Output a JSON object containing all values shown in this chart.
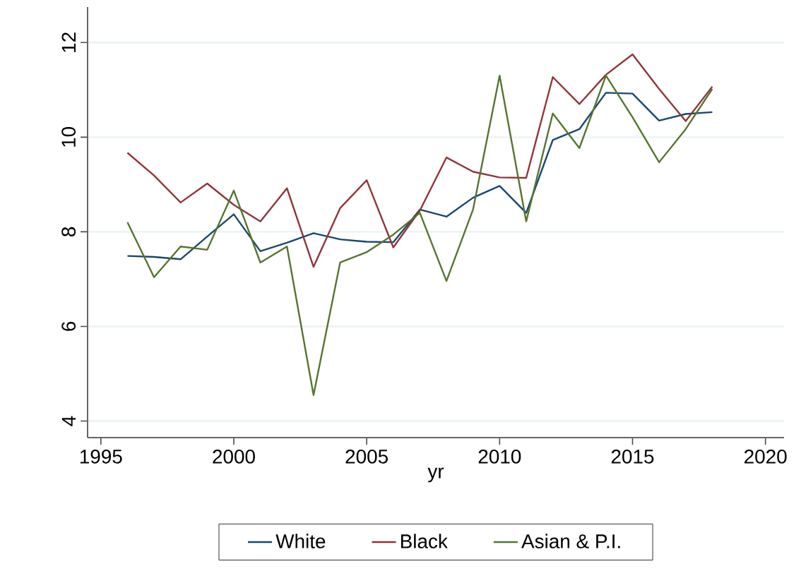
{
  "chart_data": {
    "type": "line",
    "xlabel": "yr",
    "x": [
      1996,
      1997,
      1998,
      1999,
      2000,
      2001,
      2002,
      2003,
      2004,
      2005,
      2006,
      2007,
      2008,
      2009,
      2010,
      2011,
      2012,
      2013,
      2014,
      2015,
      2016,
      2017,
      2018
    ],
    "series": [
      {
        "name": "White",
        "color": "#1a476f",
        "values": [
          7.49,
          7.47,
          7.42,
          7.9,
          8.37,
          7.59,
          7.77,
          7.97,
          7.84,
          7.79,
          7.78,
          8.47,
          8.32,
          8.72,
          8.97,
          8.4,
          9.94,
          10.17,
          10.94,
          10.92,
          10.35,
          10.49,
          10.53
        ]
      },
      {
        "name": "Black",
        "color": "#90353b",
        "values": [
          9.67,
          9.19,
          8.62,
          9.02,
          8.57,
          8.22,
          8.92,
          7.26,
          8.5,
          9.09,
          7.67,
          8.45,
          9.57,
          9.27,
          9.15,
          9.14,
          11.27,
          10.7,
          11.32,
          11.75,
          11.02,
          10.34,
          11.07
        ]
      },
      {
        "name": "Asian & P.I.",
        "color": "#55752f",
        "values": [
          8.2,
          7.04,
          7.69,
          7.62,
          8.87,
          7.35,
          7.69,
          4.55,
          7.35,
          7.57,
          7.94,
          8.4,
          6.96,
          8.47,
          11.3,
          8.22,
          10.5,
          9.77,
          11.3,
          10.42,
          9.47,
          10.17,
          11.02
        ]
      }
    ],
    "xlim": [
      1994.5,
      2020.7
    ],
    "ylim": [
      3.65,
      12.75
    ],
    "xticks": [
      1995,
      2000,
      2005,
      2010,
      2015,
      2020
    ],
    "yticks": [
      4,
      6,
      8,
      10,
      12
    ],
    "grid": "y",
    "legend": "bottom",
    "marker": "none",
    "line_style": "solid"
  }
}
